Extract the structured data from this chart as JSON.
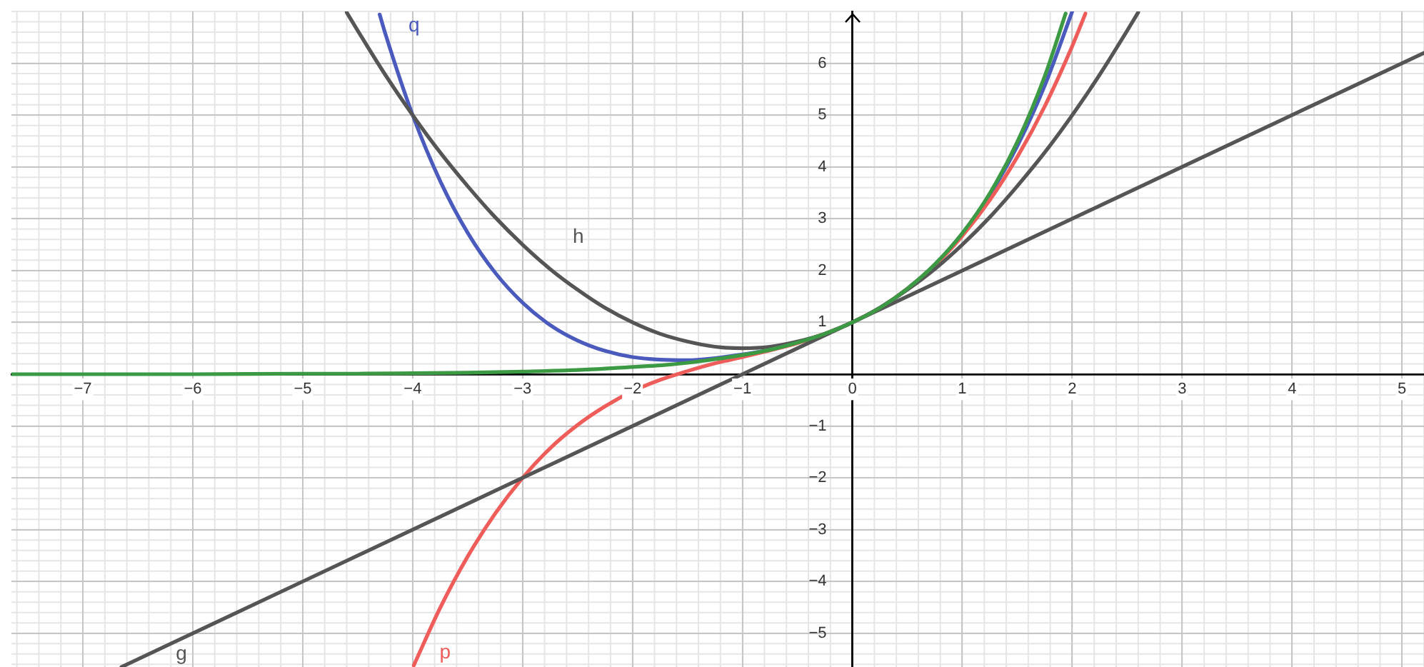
{
  "chart_data": {
    "type": "line",
    "xlim": [
      -7.65,
      5.2
    ],
    "ylim": [
      -5.65,
      7
    ],
    "xticks": [
      {
        "value": -7,
        "label": "−7"
      },
      {
        "value": -6,
        "label": "−6"
      },
      {
        "value": -5,
        "label": "−5"
      },
      {
        "value": -4,
        "label": "−4"
      },
      {
        "value": -3,
        "label": "−3"
      },
      {
        "value": -2,
        "label": "−2"
      },
      {
        "value": -1,
        "label": "−1"
      },
      0,
      1,
      2,
      3,
      4,
      5
    ],
    "yticks": [
      {
        "value": -5,
        "label": "−5"
      },
      {
        "value": -4,
        "label": "−4"
      },
      {
        "value": -3,
        "label": "−3"
      },
      {
        "value": -2,
        "label": "−2"
      },
      {
        "value": -1,
        "label": "−1"
      },
      1,
      2,
      3,
      4,
      5,
      6
    ],
    "grid": true,
    "legend": false,
    "marker": "none",
    "line_style": "solid",
    "series": [
      {
        "color": "#3d9a44",
        "x": [
          -7.65,
          -7,
          -6,
          -5,
          -4.5,
          -4,
          -3.5,
          -3,
          -2.5,
          -2,
          -1.75,
          -1.5,
          -1.25,
          -1,
          -0.75,
          -0.5,
          -0.25,
          0,
          0.25,
          0.5,
          0.75,
          1,
          1.25,
          1.5,
          1.75,
          1.94
        ],
        "values": [
          0,
          0,
          0,
          0.01,
          0.01,
          0.02,
          0.03,
          0.05,
          0.08,
          0.14,
          0.17,
          0.22,
          0.29,
          0.37,
          0.47,
          0.61,
          0.78,
          1,
          1.28,
          1.65,
          2.12,
          2.72,
          3.49,
          4.48,
          5.75,
          6.96
        ]
      },
      {
        "name": "g",
        "color": "#555555",
        "x": [
          -6.65,
          -5,
          -3,
          -1,
          0,
          1,
          3,
          5.2
        ],
        "values": [
          -5.65,
          -4,
          -2,
          0,
          1,
          2,
          4,
          6.2
        ]
      },
      {
        "name": "h",
        "color": "#555555",
        "x": [
          -4.6,
          -4.5,
          -4.25,
          -4,
          -3.75,
          -3.5,
          -3.25,
          -3,
          -2.75,
          -2.5,
          -2.25,
          -2,
          -1.75,
          -1.5,
          -1.25,
          -1,
          -0.75,
          -0.5,
          -0.25,
          0,
          0.25,
          0.5,
          0.75,
          1,
          1.25,
          1.5,
          1.75,
          2,
          2.25,
          2.5,
          2.6
        ],
        "values": [
          6.98,
          6.63,
          5.78,
          5,
          4.28,
          3.63,
          3.03,
          2.5,
          2.03,
          1.63,
          1.28,
          1,
          0.78,
          0.63,
          0.53,
          0.5,
          0.53,
          0.63,
          0.78,
          1,
          1.28,
          1.63,
          2.03,
          2.5,
          3.03,
          3.63,
          4.28,
          5,
          5.78,
          6.63,
          6.98
        ]
      },
      {
        "name": "p",
        "color": "#ef5d5a",
        "x": [
          -3.99,
          -3.75,
          -3.5,
          -3.25,
          -3,
          -2.75,
          -2.5,
          -2.25,
          -2,
          -1.75,
          -1.5,
          -1.25,
          -1,
          -0.75,
          -0.5,
          -0.25,
          0,
          0.25,
          0.5,
          0.75,
          1,
          1.25,
          1.5,
          1.75,
          2,
          2.12
        ],
        "values": [
          -5.62,
          -4.51,
          -3.52,
          -2.69,
          -2,
          -1.43,
          -0.98,
          -0.62,
          -0.33,
          -0.11,
          0.06,
          0.21,
          0.33,
          0.46,
          0.6,
          0.78,
          1,
          1.28,
          1.65,
          2.1,
          2.67,
          3.36,
          4.19,
          5.17,
          6.33,
          6.96
        ]
      },
      {
        "name": "q",
        "color": "#4a5bbd",
        "x": [
          -4.3,
          -4.25,
          -4,
          -3.75,
          -3.5,
          -3.25,
          -3,
          -2.75,
          -2.5,
          -2.25,
          -2,
          -1.75,
          -1.5,
          -1.25,
          -1,
          -0.75,
          -0.5,
          -0.25,
          0,
          0.25,
          0.5,
          0.75,
          1,
          1.25,
          1.5,
          1.75,
          2
        ],
        "values": [
          6.94,
          6.58,
          5,
          3.73,
          2.73,
          1.96,
          1.38,
          0.95,
          0.65,
          0.45,
          0.33,
          0.28,
          0.27,
          0.31,
          0.38,
          0.47,
          0.61,
          0.78,
          1,
          1.28,
          1.65,
          2.11,
          2.71,
          3.46,
          4.4,
          5.57,
          7
        ]
      }
    ]
  }
}
